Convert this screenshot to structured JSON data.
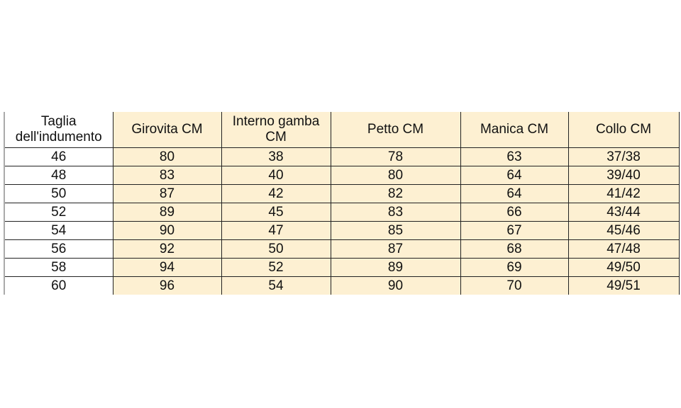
{
  "table": {
    "headers": [
      "Taglia dell'indumento",
      "Girovita CM",
      "Interno gamba CM",
      "Petto CM",
      "Manica CM",
      "Collo CM"
    ],
    "rows": [
      [
        "46",
        "80",
        "38",
        "78",
        "63",
        "37/38"
      ],
      [
        "48",
        "83",
        "40",
        "80",
        "64",
        "39/40"
      ],
      [
        "50",
        "87",
        "42",
        "82",
        "64",
        "41/42"
      ],
      [
        "52",
        "89",
        "45",
        "83",
        "66",
        "43/44"
      ],
      [
        "54",
        "90",
        "47",
        "85",
        "67",
        "45/46"
      ],
      [
        "56",
        "92",
        "50",
        "87",
        "68",
        "47/48"
      ],
      [
        "58",
        "94",
        "52",
        "89",
        "69",
        "49/50"
      ],
      [
        "60",
        "96",
        "54",
        "90",
        "70",
        "49/51"
      ]
    ],
    "fill_color": "#fdf0d2"
  }
}
